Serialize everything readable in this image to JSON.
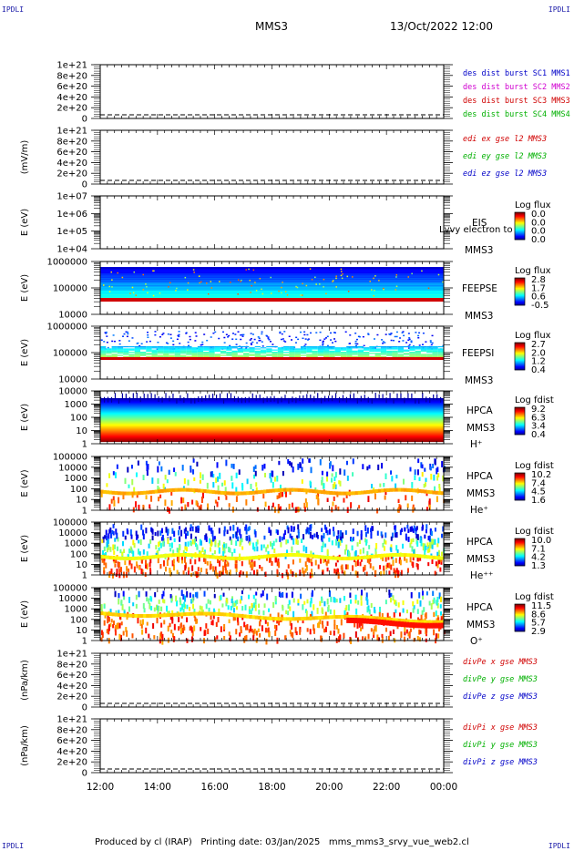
{
  "header": {
    "corner_label": "IPDLI",
    "spacecraft": "MMS3",
    "datetime": "13/Oct/2022 12:00"
  },
  "footer": {
    "text": "Produced by cl (IRAP)   Printing date: 03/Jan/2025   mms_mms3_srvy_vue_web2.cl"
  },
  "chart_data": [
    {
      "type": "line",
      "panel": "des-dist-burst",
      "ylabel": "",
      "yticks": [
        "1e+21",
        "8e+20",
        "6e+20",
        "4e+20",
        "2e+20",
        "0"
      ],
      "ylim": [
        0,
        1e+21
      ],
      "series": [
        {
          "name": "des dist burst SC1 MMS1",
          "color": "#0000c8",
          "values": [
            0
          ]
        },
        {
          "name": "des dist burst SC2 MMS2",
          "color": "#d000d0",
          "values": [
            0
          ]
        },
        {
          "name": "des dist burst SC3 MMS3",
          "color": "#d00000",
          "values": [
            0
          ]
        },
        {
          "name": "des dist burst SC4 MMS4",
          "color": "#00b000",
          "values": [
            0
          ]
        }
      ]
    },
    {
      "type": "line",
      "panel": "edi-efield",
      "ylabel": "(mV/m)",
      "yticks": [
        "1e+21",
        "8e+20",
        "6e+20",
        "4e+20",
        "2e+20",
        "0"
      ],
      "ylim": [
        0,
        1e+21
      ],
      "series": [
        {
          "name": "edi ex gse l2 MMS3",
          "color": "#d00000",
          "values": [
            0
          ]
        },
        {
          "name": "edi ey gse l2 MMS3",
          "color": "#00b000",
          "values": [
            0
          ]
        },
        {
          "name": "edi ez gse l2 MMS3",
          "color": "#0000c8",
          "values": [
            0
          ]
        }
      ]
    },
    {
      "type": "heatmap",
      "panel": "EIS",
      "ylabel": "E (eV)",
      "yticks": [
        "1e+07",
        "1e+06",
        "1e+05",
        "1e+04"
      ],
      "labels": [
        "EIS",
        "MMS3"
      ],
      "overlay_text": "Lvvy electron to",
      "colorbar": {
        "title": "Log flux",
        "ticks": [
          "0.0",
          "0.0",
          "0.0",
          "0.0"
        ]
      }
    },
    {
      "type": "heatmap",
      "panel": "FEEPSE",
      "ylabel": "E (eV)",
      "yticks": [
        "1000000",
        "100000",
        "10000"
      ],
      "labels": [
        "FEEPSE",
        "MMS3"
      ],
      "colorbar": {
        "title": "Log flux",
        "ticks": [
          "2.8",
          "1.7",
          "0.6",
          "-0.5"
        ]
      }
    },
    {
      "type": "heatmap",
      "panel": "FEEPSI",
      "ylabel": "E (eV)",
      "yticks": [
        "1000000",
        "100000",
        "10000"
      ],
      "labels": [
        "FEEPSI",
        "MMS3"
      ],
      "colorbar": {
        "title": "Log flux",
        "ticks": [
          "2.7",
          "2.0",
          "1.2",
          "0.4"
        ]
      }
    },
    {
      "type": "heatmap",
      "panel": "HPCA-H",
      "ylabel": "E (eV)",
      "yticks": [
        "10000",
        "1000",
        "100",
        "10",
        "1"
      ],
      "labels": [
        "HPCA",
        "MMS3",
        "H⁺"
      ],
      "colorbar": {
        "title": "Log fdist",
        "ticks": [
          "9.2",
          "6.3",
          "3.4",
          "0.4"
        ]
      }
    },
    {
      "type": "heatmap",
      "panel": "HPCA-He",
      "ylabel": "E (eV)",
      "yticks": [
        "100000",
        "10000",
        "1000",
        "100",
        "10",
        "1"
      ],
      "labels": [
        "HPCA",
        "MMS3",
        "He⁺"
      ],
      "colorbar": {
        "title": "Log fdist",
        "ticks": [
          "10.2",
          "7.4",
          "4.5",
          "1.6"
        ]
      }
    },
    {
      "type": "heatmap",
      "panel": "HPCA-He2",
      "ylabel": "E (eV)",
      "yticks": [
        "100000",
        "10000",
        "1000",
        "100",
        "10",
        "1"
      ],
      "labels": [
        "HPCA",
        "MMS3",
        "He⁺⁺"
      ],
      "colorbar": {
        "title": "Log fdist",
        "ticks": [
          "10.0",
          "7.1",
          "4.2",
          "1.3"
        ]
      }
    },
    {
      "type": "heatmap",
      "panel": "HPCA-O",
      "ylabel": "E (eV)",
      "yticks": [
        "100000",
        "10000",
        "1000",
        "100",
        "10",
        "1"
      ],
      "labels": [
        "HPCA",
        "MMS3",
        "O⁺"
      ],
      "colorbar": {
        "title": "Log fdist",
        "ticks": [
          "11.5",
          "8.6",
          "5.7",
          "2.9"
        ]
      }
    },
    {
      "type": "line",
      "panel": "divPe",
      "ylabel": "(nPa/km)",
      "yticks": [
        "1e+21",
        "8e+20",
        "6e+20",
        "4e+20",
        "2e+20",
        "0"
      ],
      "ylim": [
        0,
        1e+21
      ],
      "series": [
        {
          "name": "divPe x gse MMS3",
          "color": "#d00000",
          "values": [
            0
          ]
        },
        {
          "name": "divPe y gse MMS3",
          "color": "#00b000",
          "values": [
            0
          ]
        },
        {
          "name": "divPe z gse MMS3",
          "color": "#0000c8",
          "values": [
            0
          ]
        }
      ]
    },
    {
      "type": "line",
      "panel": "divPi",
      "ylabel": "(nPa/km)",
      "yticks": [
        "1e+21",
        "8e+20",
        "6e+20",
        "4e+20",
        "2e+20",
        "0"
      ],
      "ylim": [
        0,
        1e+21
      ],
      "series": [
        {
          "name": "divPi x gse MMS3",
          "color": "#d00000",
          "values": [
            0
          ]
        },
        {
          "name": "divPi y gse MMS3",
          "color": "#00b000",
          "values": [
            0
          ]
        },
        {
          "name": "divPi z gse MMS3",
          "color": "#0000c8",
          "values": [
            0
          ]
        }
      ]
    }
  ],
  "x_axis": {
    "ticks": [
      "12:00",
      "14:00",
      "16:00",
      "18:00",
      "20:00",
      "22:00",
      "00:00"
    ]
  }
}
